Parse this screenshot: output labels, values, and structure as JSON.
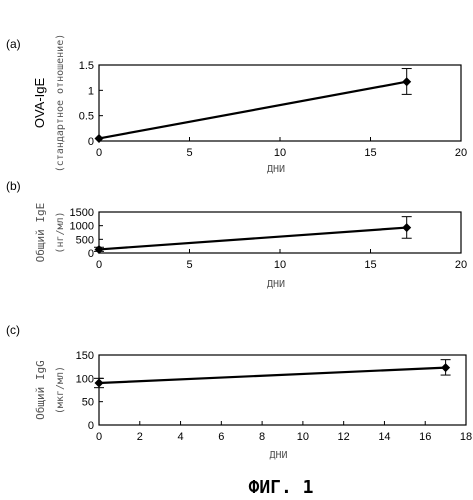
{
  "figure": {
    "caption": "ФИГ. 1"
  },
  "chart_data": [
    {
      "panel_label": "(a)",
      "type": "line",
      "ylabel": "OVA-IgE",
      "ylabel_sub": "(стандартное отношение)",
      "xlabel": "ДНИ",
      "xlim": [
        0,
        20
      ],
      "ylim": [
        0,
        1.5
      ],
      "xticks": [
        "0",
        "5",
        "10",
        "15",
        "20"
      ],
      "yticks": [
        "0",
        "0.5",
        "1",
        "1.5"
      ],
      "series": [
        {
          "x": [
            0,
            17
          ],
          "y": [
            0.05,
            1.17
          ],
          "err_low": [
            0,
            0.92
          ],
          "err_high": [
            0,
            1.43
          ]
        }
      ]
    },
    {
      "panel_label": "(b)",
      "type": "line",
      "ylabel": "Общий IgE",
      "ylabel_sub": "(нг/мл)",
      "xlabel": "ДНИ",
      "xlim": [
        0,
        20
      ],
      "ylim": [
        0,
        1500
      ],
      "xticks": [
        "0",
        "5",
        "10",
        "15",
        "20"
      ],
      "yticks": [
        "0",
        "500",
        "1000",
        "1500"
      ],
      "series": [
        {
          "x": [
            0,
            17
          ],
          "y": [
            130,
            930
          ],
          "err_low": [
            60,
            540
          ],
          "err_high": [
            210,
            1330
          ]
        }
      ]
    },
    {
      "panel_label": "(c)",
      "type": "line",
      "ylabel": "Общий IgG",
      "ylabel_sub": "(мкг/мл)",
      "xlabel": "ДНИ",
      "xlim": [
        0,
        18
      ],
      "ylim": [
        0,
        150
      ],
      "xticks": [
        "0",
        "2",
        "4",
        "6",
        "8",
        "10",
        "12",
        "14",
        "16",
        "18"
      ],
      "yticks": [
        "0",
        "50",
        "100",
        "150"
      ],
      "series": [
        {
          "x": [
            0,
            17
          ],
          "y": [
            90,
            123
          ],
          "err_low": [
            80,
            107
          ],
          "err_high": [
            100,
            140
          ]
        }
      ]
    }
  ]
}
